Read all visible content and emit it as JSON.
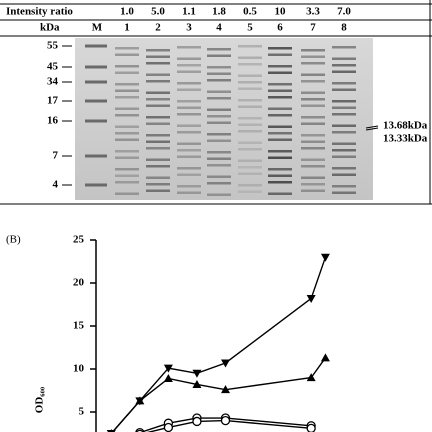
{
  "gel": {
    "ratio_label": "Intensity ratio",
    "ratios": [
      "1.0",
      "5.0",
      "1.1",
      "1.8",
      "0.5",
      "10",
      "3.3",
      "7.0"
    ],
    "kda_label": "kDa",
    "lanes": [
      "M",
      "1",
      "2",
      "3",
      "4",
      "5",
      "6",
      "7",
      "8"
    ],
    "markers": [
      "55",
      "45",
      "34",
      "17",
      "16",
      "7",
      "4"
    ],
    "annotations": [
      "13.68kDa",
      "13.33kDa"
    ]
  },
  "panel_label": "(B)",
  "chart_data": {
    "type": "line",
    "y_label": "OD₆₀₀",
    "xlim": [
      -1,
      17
    ],
    "ylim": [
      0,
      25
    ],
    "yticks": [
      5,
      10,
      15,
      20,
      25
    ],
    "series": [
      {
        "color": "#000000",
        "marker": "triangle-down",
        "x": [
          0,
          2,
          4,
          6,
          8,
          14,
          15
        ],
        "values": [
          2.5,
          6.3,
          10.1,
          9.5,
          10.7,
          18.2,
          23.0
        ]
      },
      {
        "color": "#000000",
        "marker": "triangle-up",
        "x": [
          0,
          2,
          4,
          6,
          8,
          14,
          15
        ],
        "values": [
          2.5,
          6.3,
          8.9,
          8.2,
          7.6,
          9.0,
          11.3
        ]
      },
      {
        "color": "#000000",
        "marker": "circle-open",
        "x": [
          2,
          4,
          6,
          8,
          14
        ],
        "values": [
          2.6,
          3.7,
          4.3,
          4.3,
          3.4
        ]
      },
      {
        "color": "#000000",
        "marker": "circle-open",
        "x": [
          2,
          4,
          6,
          8,
          14
        ],
        "values": [
          2.4,
          3.2,
          3.9,
          4.0,
          3.1
        ]
      }
    ]
  }
}
